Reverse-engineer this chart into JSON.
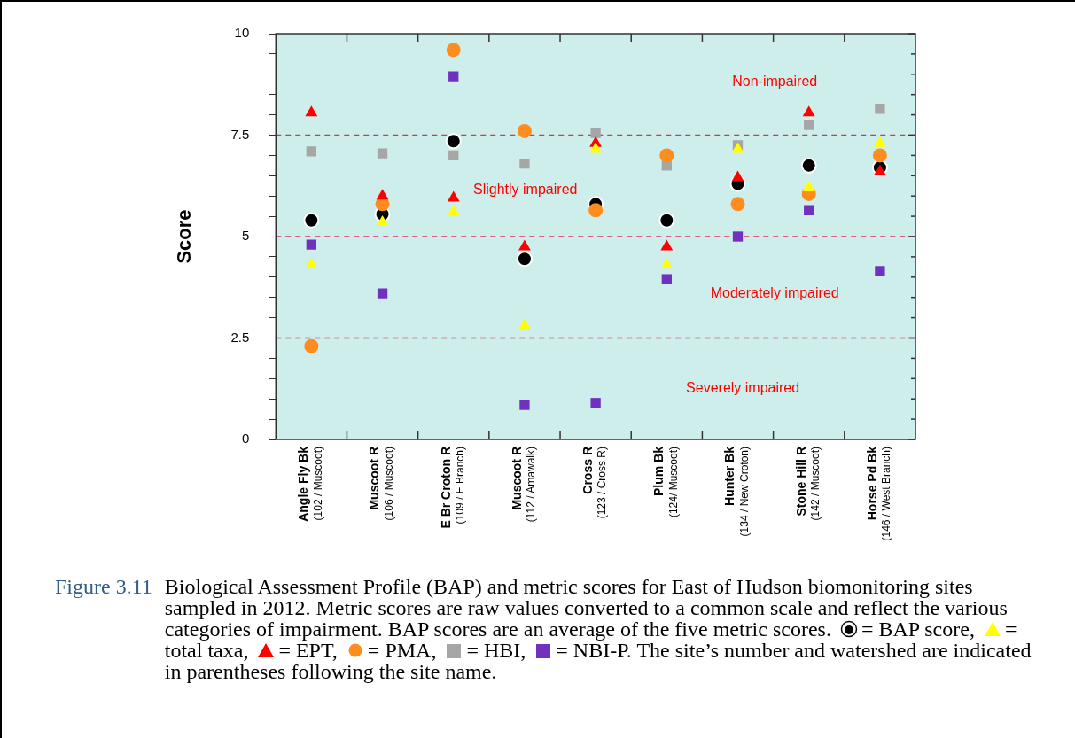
{
  "chart_data": {
    "type": "scatter",
    "ylabel": "Score",
    "categories": [
      "Angle Fly Bk\n(102 / Muscoot)",
      "Muscoot R\n(106 / Muscoot)",
      "E Br Croton R\n(109 / E Branch)",
      "Muscoot R\n(112 / Amawalk)",
      "Cross R\n(123 / Cross R)",
      "Plum Bk\n(124/ Muscoot)",
      "Hunter Bk\n(134 / New Croton)",
      "Stone Hill R\n(142 / Muscoot)",
      "Horse Pd Bk\n(146 / West Branch)"
    ],
    "series": [
      {
        "color": "#000000",
        "marker": "circle",
        "values": [
          5.4,
          5.55,
          7.35,
          4.45,
          5.8,
          5.4,
          6.3,
          6.75,
          6.7
        ]
      },
      {
        "color": "#ffff00",
        "marker": "triangle",
        "values": [
          4.3,
          5.35,
          5.6,
          2.8,
          7.15,
          4.3,
          7.15,
          6.2,
          7.3
        ]
      },
      {
        "color": "#ff0000",
        "marker": "triangle",
        "values": [
          8.05,
          6.0,
          5.95,
          4.75,
          7.3,
          4.75,
          6.45,
          8.05,
          6.6
        ]
      },
      {
        "color": "#ff8c1f",
        "marker": "circle",
        "values": [
          2.3,
          5.8,
          9.6,
          7.6,
          5.65,
          7.0,
          5.8,
          6.05,
          7.0
        ]
      },
      {
        "color": "#a6a6a6",
        "marker": "square",
        "values": [
          7.1,
          7.05,
          7.0,
          6.8,
          7.55,
          6.75,
          7.25,
          7.75,
          8.15
        ]
      },
      {
        "color": "#7030c0",
        "marker": "square",
        "values": [
          4.8,
          3.6,
          8.95,
          0.85,
          0.9,
          3.95,
          5.0,
          5.65,
          4.15
        ]
      }
    ],
    "ylim": [
      0,
      10
    ],
    "yticks": [
      0,
      {
        "value": 0.5,
        "label": null
      },
      {
        "value": 1,
        "label": null
      },
      {
        "value": 1.5,
        "label": null
      },
      {
        "value": 2,
        "label": null
      },
      2.5,
      {
        "value": 3,
        "label": null
      },
      {
        "value": 3.5,
        "label": null
      },
      {
        "value": 4,
        "label": null
      },
      {
        "value": 4.5,
        "label": null
      },
      5,
      {
        "value": 5.5,
        "label": null
      },
      {
        "value": 6,
        "label": null
      },
      {
        "value": 6.5,
        "label": null
      },
      {
        "value": 7,
        "label": null
      },
      7.5,
      {
        "value": 8,
        "label": null
      },
      {
        "value": 8.5,
        "label": null
      },
      {
        "value": 9,
        "label": null
      },
      {
        "value": 9.5,
        "label": null
      },
      10
    ],
    "ref_lines": [
      {
        "axis": "y",
        "value": 2.5,
        "color": "#d6336c",
        "line_style": "dashed"
      },
      {
        "axis": "y",
        "value": 5,
        "color": "#d6336c",
        "line_style": "dashed"
      },
      {
        "axis": "y",
        "value": 7.5,
        "color": "#d6336c",
        "line_style": "dashed"
      }
    ],
    "annotations": [
      "Non-impaired",
      "Slightly impaired",
      "Moderately impaired",
      "Severely impaired",
      "Figure 3.11",
      "Biological Assessment Profile (BAP) and metric scores for East of Hudson biomonitoring sites sampled in 2012. Metric scores are raw values converted to a common scale and reflect the various categories of impairment. BAP scores are an average of the five metric scores.",
      "= BAP score,",
      "= total taxa,",
      "= EPT,",
      "= PMA,",
      "= HBI,",
      "= NBI-P.",
      "The site’s number and watershed are indicated in parentheses following the site name."
    ],
    "grid": false
  }
}
